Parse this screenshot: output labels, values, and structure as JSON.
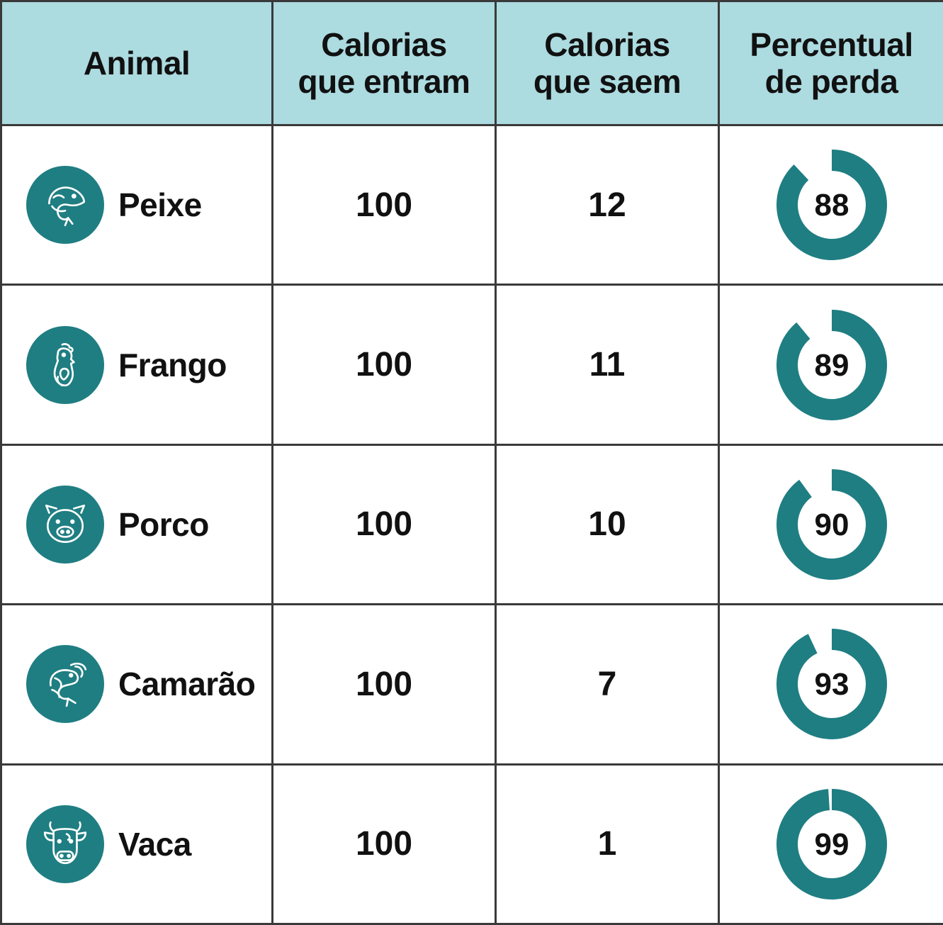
{
  "colors": {
    "header_bg": "#acdbe0",
    "accent": "#1f7e82",
    "border": "#3a3a3a"
  },
  "header": {
    "col1": "Animal",
    "col2_line1": "Calorias",
    "col2_line2": "que entram",
    "col3_line1": "Calorias",
    "col3_line2": "que saem",
    "col4_line1": "Percentual",
    "col4_line2": "de perda"
  },
  "chart_data": {
    "type": "table",
    "columns": [
      "Animal",
      "Calorias que entram",
      "Calorias que saem",
      "Percentual de perda"
    ],
    "rows": [
      {
        "animal": "Peixe",
        "icon": "fish-icon",
        "in": 100,
        "out": 12,
        "loss": 88
      },
      {
        "animal": "Frango",
        "icon": "chicken-icon",
        "in": 100,
        "out": 11,
        "loss": 89
      },
      {
        "animal": "Porco",
        "icon": "pig-icon",
        "in": 100,
        "out": 10,
        "loss": 90
      },
      {
        "animal": "Camarão",
        "icon": "shrimp-icon",
        "in": 100,
        "out": 7,
        "loss": 93
      },
      {
        "animal": "Vaca",
        "icon": "cow-icon",
        "in": 100,
        "out": 1,
        "loss": 99
      }
    ]
  }
}
